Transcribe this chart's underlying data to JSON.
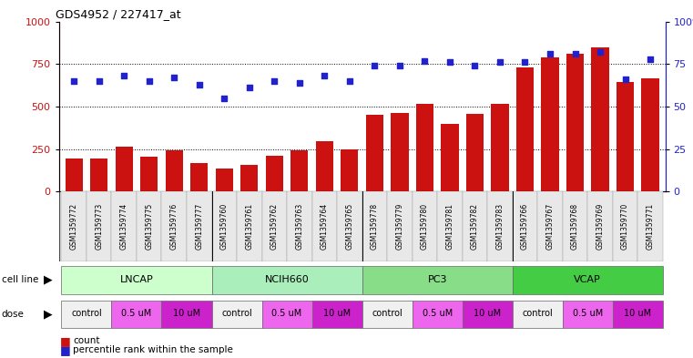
{
  "title": "GDS4952 / 227417_at",
  "samples": [
    "GSM1359772",
    "GSM1359773",
    "GSM1359774",
    "GSM1359775",
    "GSM1359776",
    "GSM1359777",
    "GSM1359760",
    "GSM1359761",
    "GSM1359762",
    "GSM1359763",
    "GSM1359764",
    "GSM1359765",
    "GSM1359778",
    "GSM1359779",
    "GSM1359780",
    "GSM1359781",
    "GSM1359782",
    "GSM1359783",
    "GSM1359766",
    "GSM1359767",
    "GSM1359768",
    "GSM1359769",
    "GSM1359770",
    "GSM1359771"
  ],
  "counts": [
    195,
    195,
    265,
    205,
    245,
    165,
    135,
    155,
    210,
    240,
    295,
    250,
    450,
    460,
    515,
    400,
    455,
    515,
    730,
    790,
    810,
    850,
    645,
    665
  ],
  "percentiles": [
    65,
    65,
    68,
    65,
    67,
    63,
    55,
    61,
    65,
    64,
    68,
    65,
    74,
    74,
    77,
    76,
    74,
    76,
    76,
    81,
    81,
    82,
    66,
    78
  ],
  "cell_lines": [
    "LNCAP",
    "NCIH660",
    "PC3",
    "VCAP"
  ],
  "cell_line_colors": [
    "#ccffcc",
    "#aaeebb",
    "#88dd88",
    "#44cc44"
  ],
  "cell_line_groups": [
    [
      0,
      5
    ],
    [
      6,
      11
    ],
    [
      12,
      17
    ],
    [
      18,
      23
    ]
  ],
  "dose_structure": [
    {
      "label": "control",
      "color": "#f0f0f0",
      "indices": [
        0,
        1
      ]
    },
    {
      "label": "0.5 uM",
      "color": "#ee66ee",
      "indices": [
        2,
        3
      ]
    },
    {
      "label": "10 uM",
      "color": "#cc22cc",
      "indices": [
        4,
        5
      ]
    },
    {
      "label": "control",
      "color": "#f0f0f0",
      "indices": [
        6,
        7
      ]
    },
    {
      "label": "0.5 uM",
      "color": "#ee66ee",
      "indices": [
        8,
        9
      ]
    },
    {
      "label": "10 uM",
      "color": "#cc22cc",
      "indices": [
        10,
        11
      ]
    },
    {
      "label": "control",
      "color": "#f0f0f0",
      "indices": [
        12,
        13
      ]
    },
    {
      "label": "0.5 uM",
      "color": "#ee66ee",
      "indices": [
        14,
        15
      ]
    },
    {
      "label": "10 uM",
      "color": "#cc22cc",
      "indices": [
        16,
        17
      ]
    },
    {
      "label": "control",
      "color": "#f0f0f0",
      "indices": [
        18,
        19
      ]
    },
    {
      "label": "0.5 uM",
      "color": "#ee66ee",
      "indices": [
        20,
        21
      ]
    },
    {
      "label": "10 uM",
      "color": "#cc22cc",
      "indices": [
        22,
        23
      ]
    }
  ],
  "bar_color": "#cc1111",
  "dot_color": "#2222cc",
  "ylim_left": [
    0,
    1000
  ],
  "ylim_right": [
    0,
    100
  ],
  "yticks_left": [
    0,
    250,
    500,
    750,
    1000
  ],
  "yticks_right": [
    0,
    25,
    50,
    75,
    100
  ],
  "ytick_right_labels": [
    "0",
    "25",
    "50",
    "75",
    "100%"
  ],
  "grid_lines": [
    250,
    500,
    750
  ],
  "bar_width": 0.7,
  "legend_count_label": "count",
  "legend_pct_label": "percentile rank within the sample"
}
